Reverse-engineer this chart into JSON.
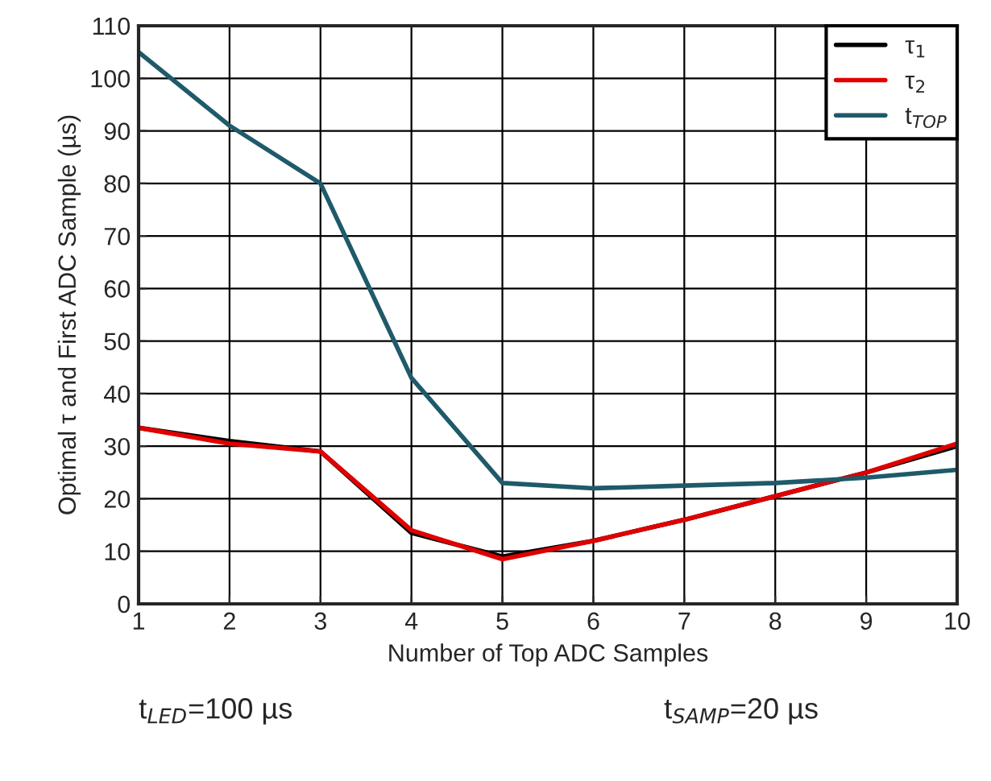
{
  "chart_data": {
    "type": "line",
    "xlabel": "Number of Top ADC Samples",
    "ylabel": "Optimal τ and First ADC Sample (µs)",
    "x": [
      1,
      2,
      3,
      4,
      5,
      6,
      7,
      8,
      9,
      10
    ],
    "series": [
      {
        "name": "τ$_{1}$",
        "color": "#000000",
        "values": [
          33.5,
          31,
          29,
          13.5,
          9,
          12,
          16,
          20.5,
          25,
          30
        ]
      },
      {
        "name": "τ$_{2}$",
        "color": "#e00000",
        "values": [
          33.5,
          30.5,
          29,
          14,
          8.5,
          12,
          16,
          20.5,
          25,
          30.5
        ]
      },
      {
        "name": "t$_{TOP}$",
        "color": "#1f5a6a",
        "values": [
          105,
          91,
          80,
          43,
          23,
          22,
          22.5,
          23,
          24,
          25.5
        ]
      }
    ],
    "xlim": [
      1,
      10
    ],
    "xticks": [
      1,
      2,
      3,
      4,
      5,
      6,
      7,
      8,
      9,
      10
    ],
    "ylim": [
      0,
      110
    ],
    "yticks": [
      0,
      10,
      20,
      30,
      40,
      50,
      60,
      70,
      80,
      90,
      100,
      110
    ],
    "grid": true,
    "legend": "top right",
    "marker": "none",
    "line_style": "solid",
    "annotations": [
      "t$_{LED}$=100 µs",
      "t$_{SAMP}$=20 µs"
    ]
  }
}
